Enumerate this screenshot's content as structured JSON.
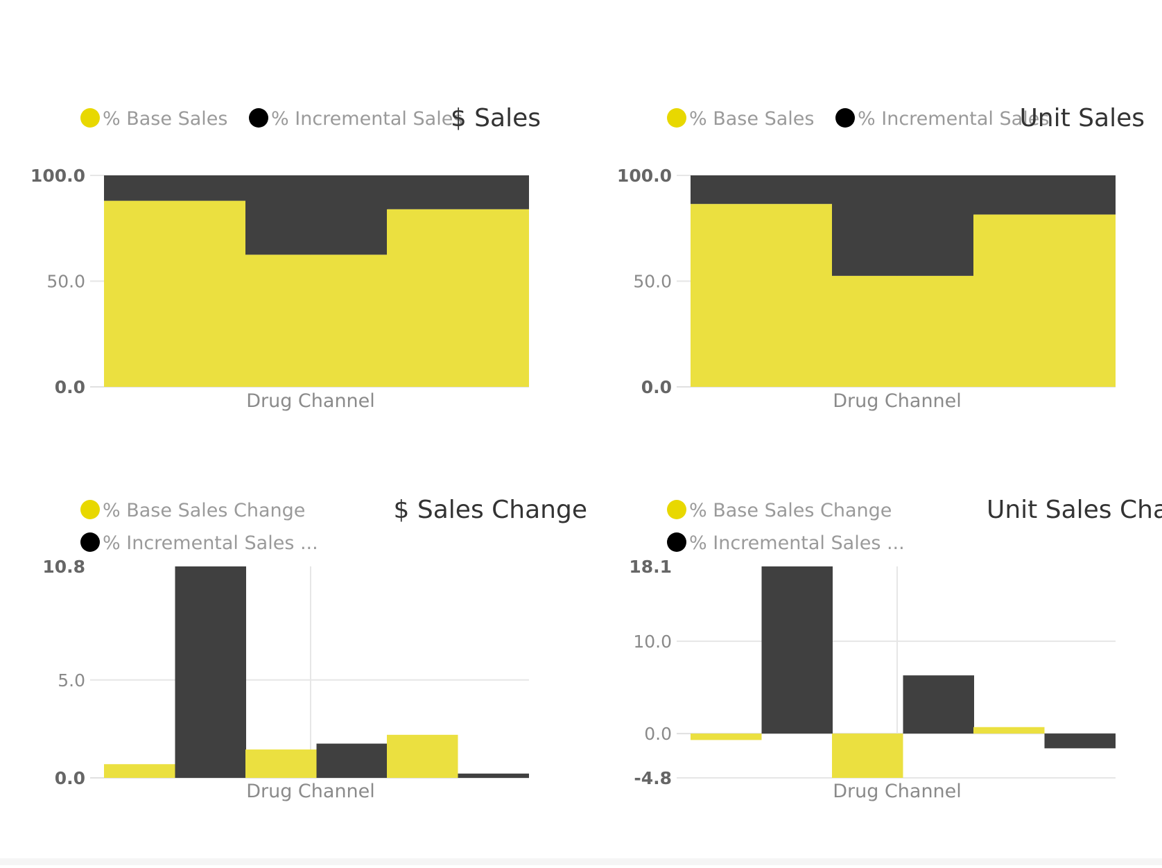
{
  "colors": {
    "base": "#ebe040",
    "base_marker": "#e8d800",
    "incremental": "#404040",
    "incremental_marker": "#000000"
  },
  "chart_data": [
    {
      "type": "bar",
      "stacked": true,
      "title": "$ Sales",
      "legend": [
        "% Base Sales",
        "% Incremental Sales"
      ],
      "xlabel": "Drug Channel",
      "ylim": [
        0,
        100
      ],
      "yticks": [
        "0.0",
        "50.0",
        "100.0"
      ],
      "grid": true,
      "categories": [
        "",
        "",
        ""
      ],
      "series": [
        {
          "name": "% Base Sales",
          "values": [
            88,
            62.5,
            84
          ]
        },
        {
          "name": "% Incremental Sales",
          "values": [
            12,
            37.5,
            16
          ]
        }
      ]
    },
    {
      "type": "bar",
      "stacked": true,
      "title": "Unit Sales",
      "legend": [
        "% Base Sales",
        "% Incremental Sales"
      ],
      "xlabel": "Drug Channel",
      "ylim": [
        0,
        100
      ],
      "yticks": [
        "0.0",
        "50.0",
        "100.0"
      ],
      "grid": true,
      "categories": [
        "",
        "",
        ""
      ],
      "series": [
        {
          "name": "% Base Sales",
          "values": [
            86.5,
            52.5,
            81.5
          ]
        },
        {
          "name": "% Incremental Sales",
          "values": [
            13.5,
            47.5,
            18.5
          ]
        }
      ]
    },
    {
      "type": "bar",
      "stacked": false,
      "title": "$ Sales Change",
      "legend": [
        "% Base Sales Change",
        "% Incremental Sales ..."
      ],
      "xlabel": "Drug Channel",
      "ylim": [
        0,
        10.8
      ],
      "yticks": [
        "0.0",
        "5.0",
        "10.8"
      ],
      "grid": true,
      "categories": [
        "",
        "",
        ""
      ],
      "series": [
        {
          "name": "% Base Sales Change",
          "values": [
            0.7,
            1.45,
            2.2
          ]
        },
        {
          "name": "% Incremental Sales ...",
          "values": [
            10.8,
            1.75,
            0.22
          ]
        }
      ]
    },
    {
      "type": "bar",
      "stacked": false,
      "title": "Unit Sales Chan",
      "legend": [
        "% Base Sales Change",
        "% Incremental Sales ..."
      ],
      "xlabel": "Drug Channel",
      "ylim": [
        -4.8,
        18.1
      ],
      "yticks": [
        "-4.8",
        "0.0",
        "10.0",
        "18.1"
      ],
      "grid": true,
      "categories": [
        "",
        "",
        ""
      ],
      "series": [
        {
          "name": "% Base Sales Change",
          "values": [
            -0.7,
            -4.8,
            0.7
          ]
        },
        {
          "name": "% Incremental Sales ...",
          "values": [
            18.1,
            6.3,
            -1.6
          ]
        }
      ]
    }
  ]
}
